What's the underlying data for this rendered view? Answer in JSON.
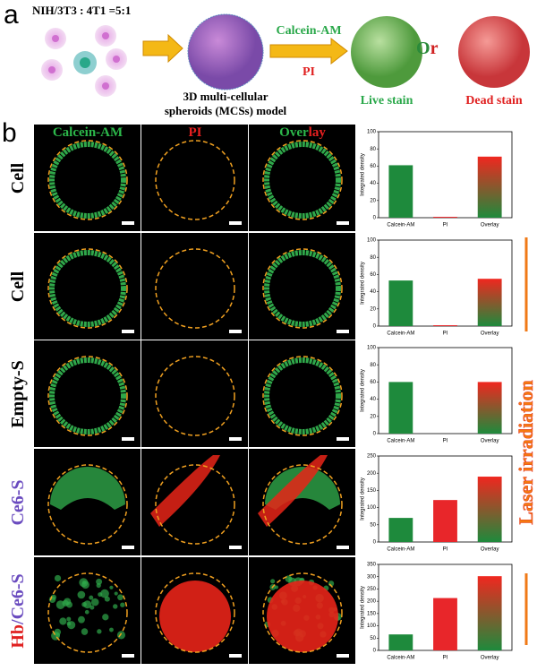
{
  "panel_a": {
    "label": "a",
    "ratio": "NIH/3T3 : 4T1 =5:1",
    "stain1": "Calcein-AM",
    "stain2": "PI",
    "or": [
      "O",
      "r"
    ],
    "model": [
      "3D multi-cellular",
      "spheroids (MCSs) model"
    ],
    "live": "Live stain",
    "dead": "Dead stain"
  },
  "panel_b": {
    "label": "b",
    "headers": [
      "Calcein-AM",
      "PI"
    ],
    "overlay_header": [
      "Over",
      "lay"
    ],
    "rows": [
      "Cell",
      "Cell",
      "Empty-S",
      "Ce6-S",
      [
        "Hb",
        "/Ce6-S"
      ]
    ],
    "side": "Laser irradiation"
  },
  "chart_data": [
    {
      "type": "bar",
      "ylabel": "Integrated density",
      "categories": [
        "Calcein-AM",
        "PI",
        "Overlay"
      ],
      "values": [
        61,
        1,
        71
      ],
      "colors": [
        "#1e8a3c",
        "#e8262a"
      ],
      "overlay_gradient": [
        "#f0271f",
        "#1e8a3c"
      ],
      "ylim": [
        0,
        100
      ],
      "yticks": [
        0,
        20,
        40,
        60,
        80,
        100
      ]
    },
    {
      "type": "bar",
      "ylabel": "Integrated density",
      "categories": [
        "Calcein-AM",
        "PI",
        "Overlay"
      ],
      "values": [
        53,
        1,
        55
      ],
      "colors": [
        "#1e8a3c",
        "#e8262a"
      ],
      "overlay_gradient": [
        "#f0271f",
        "#1e8a3c"
      ],
      "ylim": [
        0,
        100
      ],
      "yticks": [
        0,
        20,
        40,
        60,
        80,
        100
      ]
    },
    {
      "type": "bar",
      "ylabel": "Integrated density",
      "categories": [
        "Calcein-AM",
        "PI",
        "Overlay"
      ],
      "values": [
        60,
        0,
        60
      ],
      "colors": [
        "#1e8a3c",
        "#e8262a"
      ],
      "overlay_gradient": [
        "#f0271f",
        "#1e8a3c"
      ],
      "ylim": [
        0,
        100
      ],
      "yticks": [
        0,
        20,
        40,
        60,
        80,
        100
      ]
    },
    {
      "type": "bar",
      "ylabel": "Integrated density",
      "categories": [
        "Calcein-AM",
        "PI",
        "Overlay"
      ],
      "values": [
        70,
        122,
        190
      ],
      "colors": [
        "#1e8a3c",
        "#e8262a"
      ],
      "overlay_gradient": [
        "#f0271f",
        "#1e8a3c"
      ],
      "ylim": [
        0,
        250
      ],
      "yticks": [
        0,
        50,
        100,
        150,
        200,
        250
      ]
    },
    {
      "type": "bar",
      "ylabel": "Integrated density",
      "categories": [
        "Calcein-AM",
        "PI",
        "Overlay"
      ],
      "values": [
        65,
        213,
        302
      ],
      "colors": [
        "#1e8a3c",
        "#e8262a"
      ],
      "overlay_gradient": [
        "#f0271f",
        "#1e8a3c"
      ],
      "ylim": [
        0,
        350
      ],
      "yticks": [
        0,
        50,
        100,
        150,
        200,
        250,
        300,
        350
      ]
    }
  ]
}
